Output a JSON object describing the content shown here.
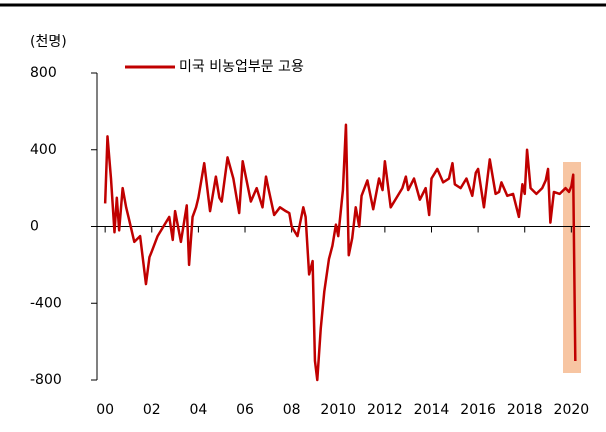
{
  "chart_data": {
    "type": "line",
    "y_label": "(천명)",
    "series": [
      {
        "name": "미국 비농업부문 고용",
        "color": "#c00000",
        "x": [
          2000.0,
          2000.1,
          2000.25,
          2000.4,
          2000.5,
          2000.6,
          2000.75,
          2000.9,
          2001.0,
          2001.25,
          2001.5,
          2001.75,
          2001.9,
          2002.0,
          2002.25,
          2002.5,
          2002.75,
          2002.9,
          2003.0,
          2003.25,
          2003.5,
          2003.6,
          2003.75,
          2003.9,
          2004.0,
          2004.25,
          2004.5,
          2004.75,
          2004.9,
          2005.0,
          2005.25,
          2005.5,
          2005.75,
          2005.9,
          2006.0,
          2006.25,
          2006.5,
          2006.75,
          2006.9,
          2007.0,
          2007.25,
          2007.5,
          2007.75,
          2007.9,
          2008.0,
          2008.25,
          2008.5,
          2008.6,
          2008.75,
          2008.9,
          2009.0,
          2009.1,
          2009.25,
          2009.4,
          2009.6,
          2009.75,
          2009.9,
          2010.0,
          2010.2,
          2010.33,
          2010.45,
          2010.6,
          2010.75,
          2010.9,
          2011.0,
          2011.25,
          2011.5,
          2011.75,
          2011.9,
          2012.0,
          2012.25,
          2012.5,
          2012.75,
          2012.9,
          2013.0,
          2013.25,
          2013.5,
          2013.75,
          2013.9,
          2014.0,
          2014.25,
          2014.5,
          2014.75,
          2014.9,
          2015.0,
          2015.25,
          2015.5,
          2015.75,
          2015.9,
          2016.0,
          2016.25,
          2016.5,
          2016.75,
          2016.9,
          2017.0,
          2017.25,
          2017.5,
          2017.75,
          2017.9,
          2018.0,
          2018.1,
          2018.25,
          2018.5,
          2018.75,
          2018.9,
          2019.0,
          2019.1,
          2019.25,
          2019.5,
          2019.75,
          2019.9,
          2020.0,
          2020.08,
          2020.17
        ],
        "values": [
          120,
          470,
          250,
          -30,
          150,
          -20,
          200,
          100,
          50,
          -80,
          -50,
          -300,
          -160,
          -130,
          -50,
          0,
          50,
          -70,
          80,
          -80,
          110,
          -200,
          50,
          100,
          150,
          330,
          80,
          260,
          150,
          130,
          360,
          250,
          70,
          340,
          280,
          130,
          200,
          100,
          260,
          200,
          60,
          100,
          80,
          70,
          0,
          -50,
          100,
          50,
          -250,
          -180,
          -700,
          -800,
          -530,
          -340,
          -170,
          -100,
          10,
          -50,
          190,
          530,
          -150,
          -60,
          100,
          0,
          160,
          240,
          90,
          250,
          190,
          340,
          100,
          150,
          200,
          260,
          190,
          250,
          140,
          200,
          60,
          250,
          300,
          230,
          250,
          330,
          220,
          200,
          250,
          160,
          280,
          300,
          100,
          350,
          170,
          180,
          230,
          160,
          170,
          50,
          220,
          170,
          400,
          200,
          170,
          200,
          240,
          300,
          20,
          180,
          170,
          200,
          180,
          210,
          270,
          -701
        ]
      }
    ],
    "xlim": [
      1999.65,
      2020.8
    ],
    "xticks": [
      {
        "value": 2000,
        "label": "00"
      },
      {
        "value": 2002,
        "label": "02"
      },
      {
        "value": 2004,
        "label": "04"
      },
      {
        "value": 2006,
        "label": "06"
      },
      {
        "value": 2008,
        "label": "08"
      },
      2010,
      2012,
      2014,
      2016,
      2018,
      2020
    ],
    "ylim": [
      -800,
      800
    ],
    "yticks": [
      -800,
      -400,
      0,
      400,
      800
    ]
  }
}
